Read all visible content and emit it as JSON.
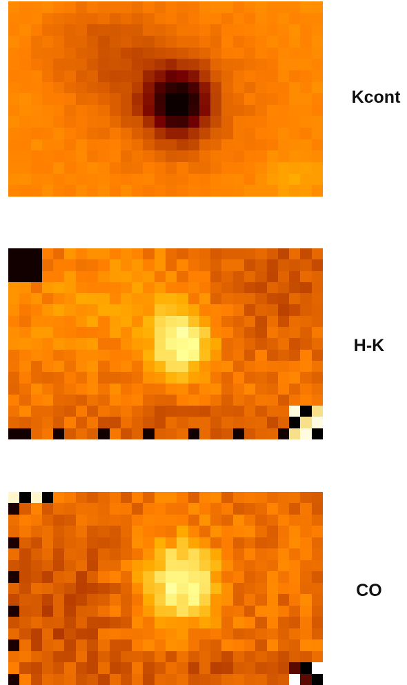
{
  "panels": [
    {
      "id": "kcont",
      "label": "Kcont",
      "colormap": "afmhot-orange",
      "cols": 28,
      "rows": 17,
      "features": "dark-core"
    },
    {
      "id": "hk",
      "label": "H-K",
      "colormap": "afmhot-orange",
      "cols": 28,
      "rows": 17,
      "features": "bright-core"
    },
    {
      "id": "co",
      "label": "CO",
      "colormap": "afmhot-orange",
      "cols": 28,
      "rows": 17,
      "features": "bright-core"
    }
  ],
  "colors": {
    "background": "#ffffff",
    "label_text": "#111111",
    "map_base": "#e89a3a",
    "map_dark": "#1a0000",
    "map_bright": "#fff2b0"
  }
}
